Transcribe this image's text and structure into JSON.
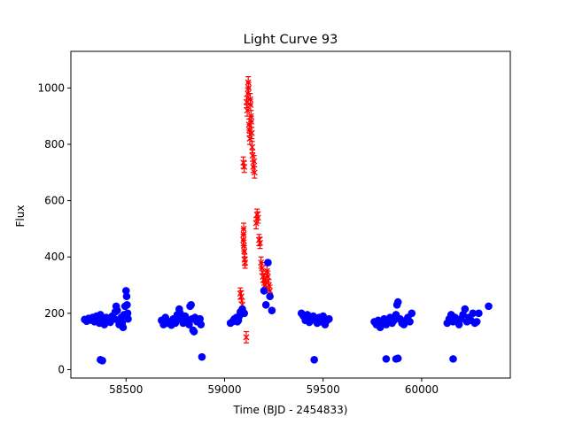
{
  "chart_data": {
    "type": "scatter",
    "title": "Light Curve 93",
    "xlabel": "Time (BJD - 2454833)",
    "ylabel": "Flux",
    "xlim": [
      58220,
      60450
    ],
    "ylim": [
      -30,
      1130
    ],
    "xticks": [
      58500,
      59000,
      59500,
      60000
    ],
    "yticks": [
      0,
      200,
      400,
      600,
      800,
      1000
    ],
    "grid": false,
    "colors": {
      "series_blue": "#0000ff",
      "series_red": "#ff0000"
    },
    "series": [
      {
        "marker": "circle",
        "color": "#0000ff",
        "points": [
          [
            58290,
            178
          ],
          [
            58300,
            172
          ],
          [
            58310,
            182
          ],
          [
            58320,
            176
          ],
          [
            58330,
            185
          ],
          [
            58340,
            170
          ],
          [
            58350,
            190
          ],
          [
            58360,
            180
          ],
          [
            58365,
            165
          ],
          [
            58370,
            195
          ],
          [
            58380,
            178
          ],
          [
            58390,
            160
          ],
          [
            58400,
            185
          ],
          [
            58410,
            175
          ],
          [
            58420,
            168
          ],
          [
            58430,
            190
          ],
          [
            58440,
            180
          ],
          [
            58445,
            205
          ],
          [
            58450,
            225
          ],
          [
            58455,
            210
          ],
          [
            58460,
            175
          ],
          [
            58465,
            160
          ],
          [
            58470,
            170
          ],
          [
            58475,
            185
          ],
          [
            58480,
            165
          ],
          [
            58485,
            150
          ],
          [
            58490,
            195
          ],
          [
            58495,
            225
          ],
          [
            58500,
            280
          ],
          [
            58503,
            260
          ],
          [
            58505,
            230
          ],
          [
            58508,
            200
          ],
          [
            58510,
            180
          ],
          [
            58370,
            35
          ],
          [
            58380,
            32
          ],
          [
            58680,
            175
          ],
          [
            58690,
            160
          ],
          [
            58700,
            185
          ],
          [
            58710,
            165
          ],
          [
            58720,
            170
          ],
          [
            58730,
            158
          ],
          [
            58740,
            180
          ],
          [
            58750,
            165
          ],
          [
            58755,
            175
          ],
          [
            58760,
            195
          ],
          [
            58770,
            215
          ],
          [
            58775,
            200
          ],
          [
            58780,
            180
          ],
          [
            58790,
            165
          ],
          [
            58800,
            190
          ],
          [
            58810,
            175
          ],
          [
            58820,
            160
          ],
          [
            58825,
            225
          ],
          [
            58830,
            230
          ],
          [
            58835,
            180
          ],
          [
            58840,
            140
          ],
          [
            58845,
            135
          ],
          [
            58850,
            185
          ],
          [
            58860,
            170
          ],
          [
            58870,
            175
          ],
          [
            58875,
            180
          ],
          [
            58880,
            160
          ],
          [
            58885,
            45
          ],
          [
            59030,
            165
          ],
          [
            59040,
            170
          ],
          [
            59045,
            175
          ],
          [
            59050,
            180
          ],
          [
            59060,
            185
          ],
          [
            59065,
            170
          ],
          [
            59070,
            175
          ],
          [
            59075,
            190
          ],
          [
            59080,
            205
          ],
          [
            59090,
            215
          ],
          [
            59100,
            200
          ],
          [
            59200,
            280
          ],
          [
            59210,
            230
          ],
          [
            59220,
            380
          ],
          [
            59230,
            260
          ],
          [
            59240,
            210
          ],
          [
            59390,
            200
          ],
          [
            59400,
            190
          ],
          [
            59410,
            175
          ],
          [
            59420,
            195
          ],
          [
            59430,
            168
          ],
          [
            59440,
            180
          ],
          [
            59450,
            190
          ],
          [
            59455,
            35
          ],
          [
            59460,
            175
          ],
          [
            59470,
            165
          ],
          [
            59480,
            185
          ],
          [
            59490,
            170
          ],
          [
            59500,
            190
          ],
          [
            59510,
            160
          ],
          [
            59520,
            175
          ],
          [
            59530,
            180
          ],
          [
            59760,
            170
          ],
          [
            59770,
            160
          ],
          [
            59780,
            175
          ],
          [
            59790,
            150
          ],
          [
            59800,
            165
          ],
          [
            59810,
            180
          ],
          [
            59820,
            160
          ],
          [
            59830,
            175
          ],
          [
            59840,
            185
          ],
          [
            59850,
            165
          ],
          [
            59860,
            175
          ],
          [
            59870,
            195
          ],
          [
            59875,
            230
          ],
          [
            59880,
            240
          ],
          [
            59890,
            180
          ],
          [
            59900,
            165
          ],
          [
            59910,
            160
          ],
          [
            59920,
            175
          ],
          [
            59930,
            185
          ],
          [
            59940,
            170
          ],
          [
            59950,
            200
          ],
          [
            59820,
            38
          ],
          [
            59870,
            38
          ],
          [
            59880,
            40
          ],
          [
            60130,
            165
          ],
          [
            60140,
            180
          ],
          [
            60150,
            195
          ],
          [
            60160,
            170
          ],
          [
            60170,
            185
          ],
          [
            60180,
            175
          ],
          [
            60190,
            160
          ],
          [
            60200,
            180
          ],
          [
            60210,
            195
          ],
          [
            60220,
            215
          ],
          [
            60230,
            170
          ],
          [
            60240,
            185
          ],
          [
            60250,
            175
          ],
          [
            60260,
            200
          ],
          [
            60270,
            165
          ],
          [
            60280,
            170
          ],
          [
            60290,
            200
          ],
          [
            60340,
            225
          ],
          [
            60160,
            38
          ]
        ]
      },
      {
        "marker": "x",
        "color": "#ff0000",
        "error": 20,
        "points": [
          [
            59080,
            270
          ],
          [
            59085,
            260
          ],
          [
            59090,
            230
          ],
          [
            59095,
            460
          ],
          [
            59096,
            480
          ],
          [
            59097,
            500
          ],
          [
            59098,
            440
          ],
          [
            59100,
            420
          ],
          [
            59102,
            390
          ],
          [
            59104,
            380
          ],
          [
            59095,
            735
          ],
          [
            59100,
            720
          ],
          [
            59110,
            115
          ],
          [
            59112,
            950
          ],
          [
            59115,
            920
          ],
          [
            59118,
            980
          ],
          [
            59120,
            1020
          ],
          [
            59122,
            1000
          ],
          [
            59124,
            870
          ],
          [
            59126,
            850
          ],
          [
            59128,
            820
          ],
          [
            59130,
            960
          ],
          [
            59132,
            940
          ],
          [
            59134,
            900
          ],
          [
            59136,
            880
          ],
          [
            59138,
            840
          ],
          [
            59140,
            790
          ],
          [
            59142,
            760
          ],
          [
            59145,
            720
          ],
          [
            59150,
            740
          ],
          [
            59152,
            700
          ],
          [
            59160,
            520
          ],
          [
            59165,
            550
          ],
          [
            59170,
            540
          ],
          [
            59175,
            460
          ],
          [
            59180,
            450
          ],
          [
            59185,
            380
          ],
          [
            59190,
            360
          ],
          [
            59195,
            330
          ],
          [
            59200,
            320
          ],
          [
            59205,
            300
          ],
          [
            59210,
            310
          ],
          [
            59215,
            350
          ],
          [
            59220,
            330
          ],
          [
            59225,
            300
          ],
          [
            59230,
            280
          ]
        ]
      }
    ]
  }
}
